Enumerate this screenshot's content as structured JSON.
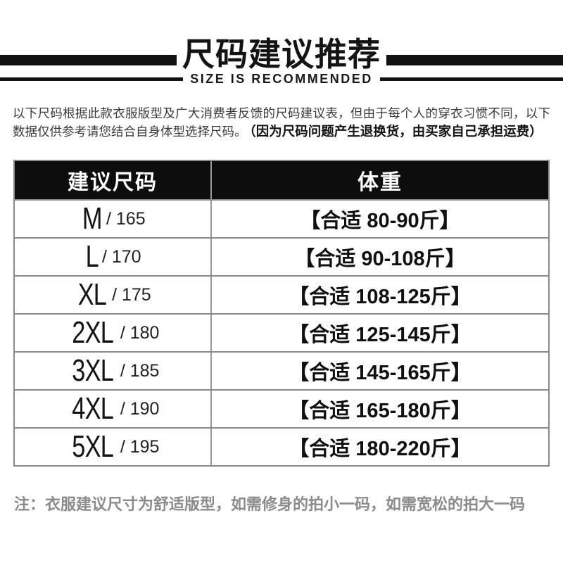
{
  "header": {
    "title": "尺码建议推荐",
    "subtitle": "SIZE IS RECOMMENDED"
  },
  "intro": {
    "text": "以下尺码根据此款衣服版型及广大消费者反馈的尺码建议表，但由于每个人的穿衣习惯不同，以下数据仅供参考请您结合自身体型选择尺码。",
    "note_bold": "（因为尺码问题产生退换货，由买家自己承担运费）"
  },
  "table": {
    "columns": [
      "建议尺码",
      "体重"
    ],
    "rows": [
      {
        "size": "M",
        "height_display": "/ 165",
        "weight": "【合适 80-90斤】"
      },
      {
        "size": "L",
        "height_display": "/ 170",
        "weight": "【合适 90-108斤】"
      },
      {
        "size": "XL",
        "height_display": "/ 175",
        "weight": "【合适 108-125斤】"
      },
      {
        "size": "2XL",
        "height_display": "/ 180",
        "weight": "【合适 125-145斤】"
      },
      {
        "size": "3XL",
        "height_display": "/ 185",
        "weight": "【合适 145-165斤】"
      },
      {
        "size": "4XL",
        "height_display": "/ 190",
        "weight": "【合适 165-180斤】"
      },
      {
        "size": "5XL",
        "height_display": "/ 195",
        "weight": "【合适 180-220斤】"
      }
    ]
  },
  "footnote": "注：衣服建议尺寸为舒适版型，如需修身的拍小一码，如需宽松的拍大一码",
  "colors": {
    "ink": "#121212",
    "paragraph_text": "#3a3a3a",
    "muted_gray": "#8b8b8b",
    "table_border": "#8a8a8a",
    "header_bg": "#0d0d0d",
    "header_text": "#ffffff",
    "background": "#ffffff"
  }
}
